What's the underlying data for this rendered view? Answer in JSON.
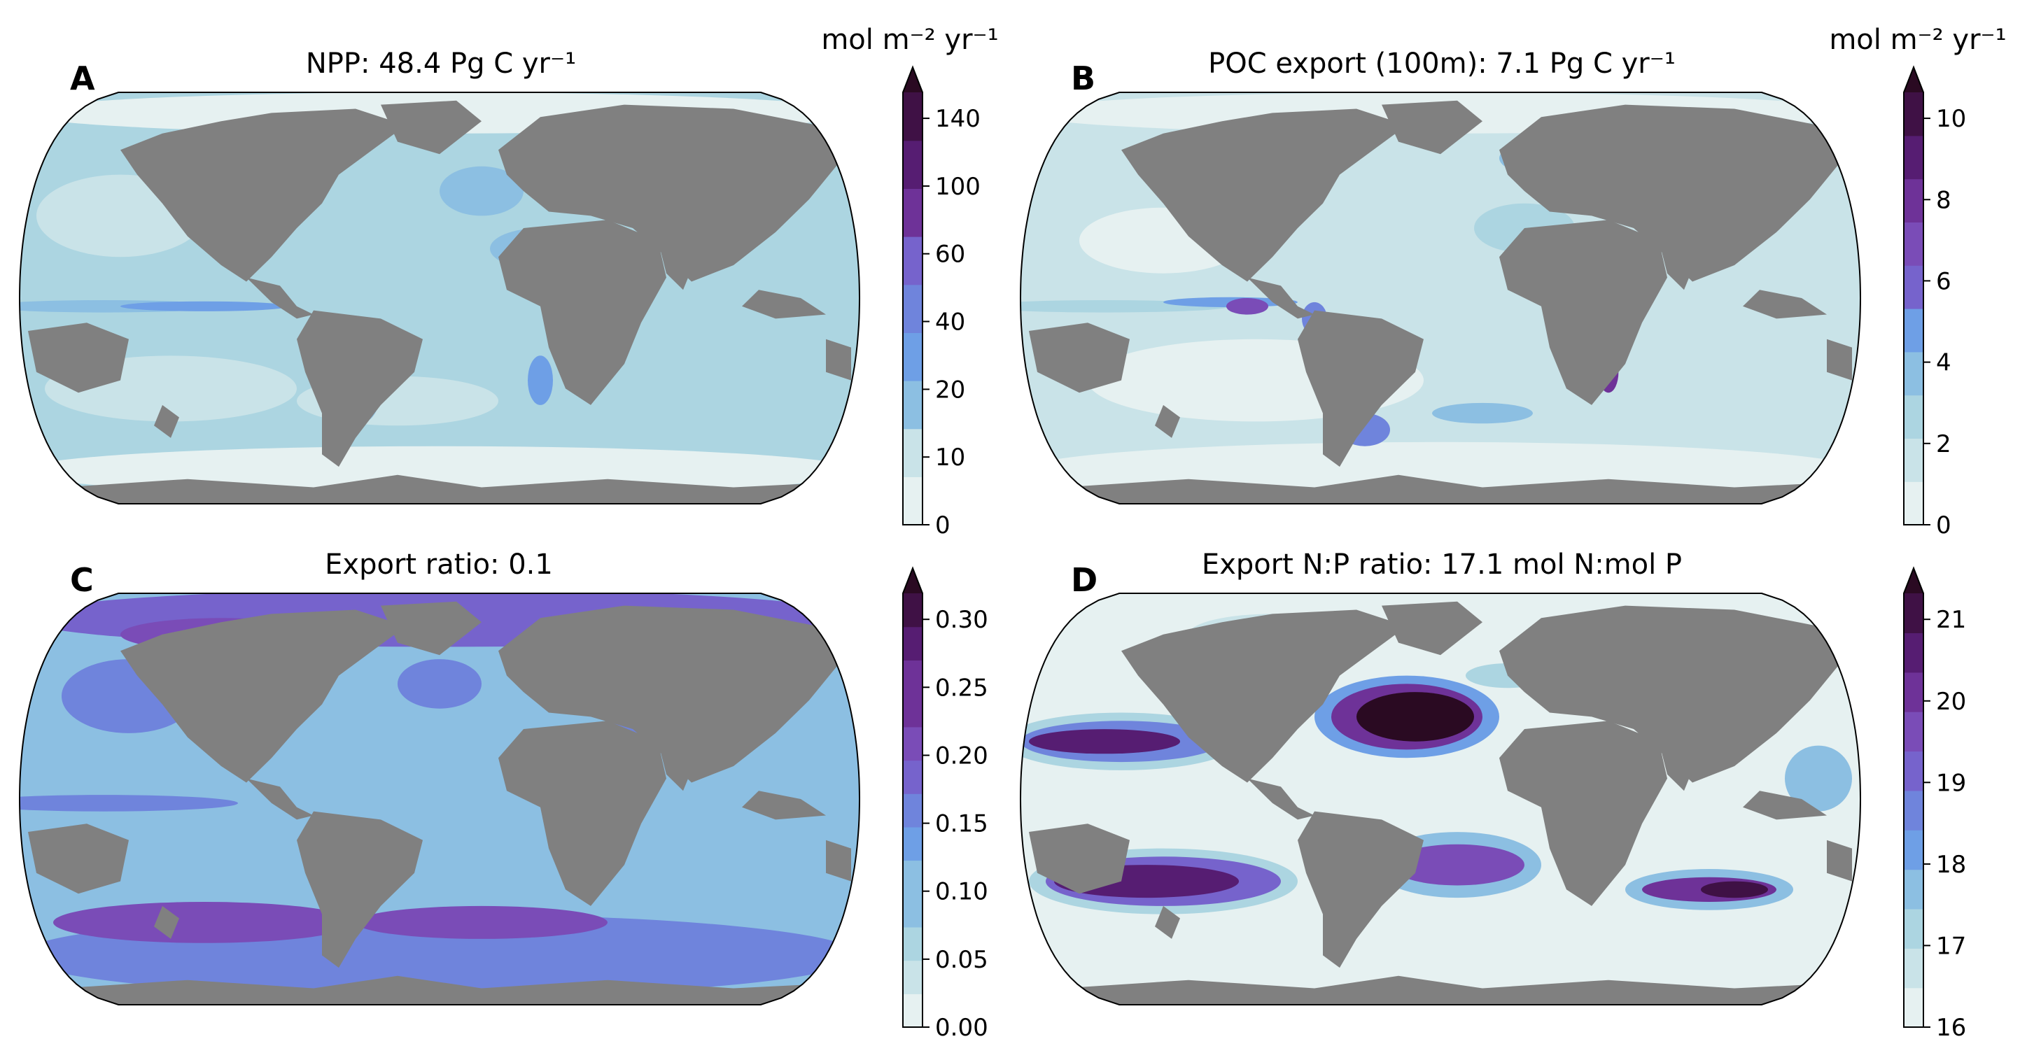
{
  "panels": [
    {
      "letter": "A",
      "title": "NPP: 48.4 Pg C yr⁻¹",
      "unit_label": "mol m⁻² yr⁻¹",
      "colorbar": {
        "tick_labels": [
          "0",
          "10",
          "20",
          "40",
          "60",
          "100",
          "140"
        ],
        "extend": "max",
        "levels": 9
      },
      "field_style": "npp"
    },
    {
      "letter": "B",
      "title": "POC export (100m): 7.1 Pg C yr⁻¹",
      "unit_label": "mol m⁻² yr⁻¹",
      "colorbar": {
        "tick_labels": [
          "0",
          "2",
          "4",
          "6",
          "8",
          "10"
        ],
        "extend": "max",
        "levels": 10
      },
      "field_style": "poc"
    },
    {
      "letter": "C",
      "title": "Export ratio: 0.1",
      "unit_label": "",
      "colorbar": {
        "tick_labels": [
          "0.00",
          "0.05",
          "0.10",
          "0.15",
          "0.20",
          "0.25",
          "0.30"
        ],
        "extend": "max",
        "levels": 13
      },
      "field_style": "ratio"
    },
    {
      "letter": "D",
      "title": "Export N:P ratio: 17.1 mol N:mol P",
      "unit_label": "",
      "colorbar": {
        "tick_labels": [
          "16",
          "17",
          "18",
          "19",
          "20",
          "21"
        ],
        "extend": "max",
        "levels": 11
      },
      "field_style": "np"
    }
  ],
  "colors": {
    "land": "#808080",
    "ramp": [
      "#e6f1f1",
      "#c9e3e8",
      "#acd5e1",
      "#8cbfe2",
      "#6e9fe6",
      "#6f84dc",
      "#7663cc",
      "#7a4cb7",
      "#6e3298",
      "#561d72",
      "#3f1145",
      "#2a0a22"
    ]
  }
}
